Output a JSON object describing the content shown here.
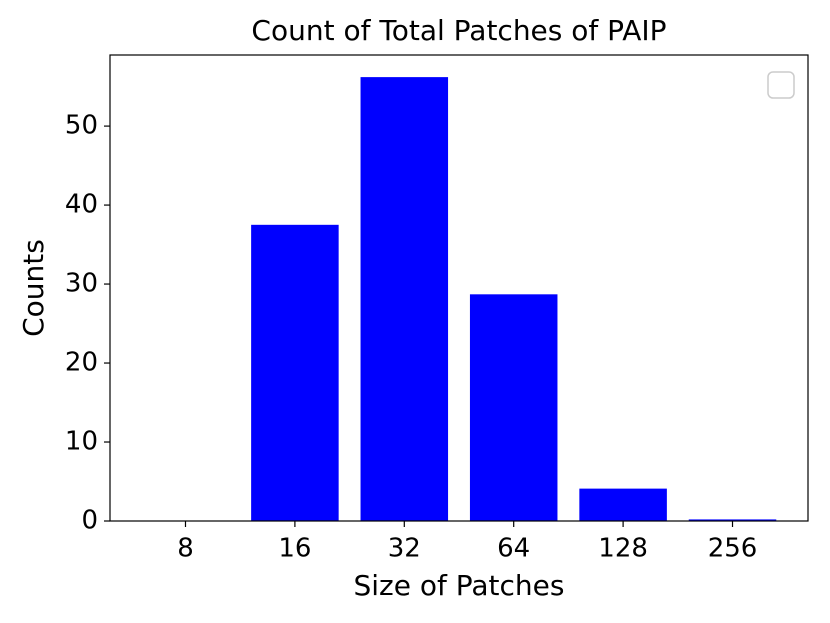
{
  "chart_data": {
    "type": "bar",
    "title": "Count of Total Patches of PAIP",
    "x_label": "Size of Patches",
    "y_label": "Counts",
    "categories": [
      "8",
      "16",
      "32",
      "64",
      "128",
      "256"
    ],
    "values": [
      0,
      37.5,
      56.2,
      28.7,
      4.1,
      0.2
    ],
    "color": "#0000ff",
    "ylim": [
      0,
      59
    ],
    "yticks": [
      0,
      10,
      20,
      30,
      40,
      50
    ],
    "grid": false
  }
}
